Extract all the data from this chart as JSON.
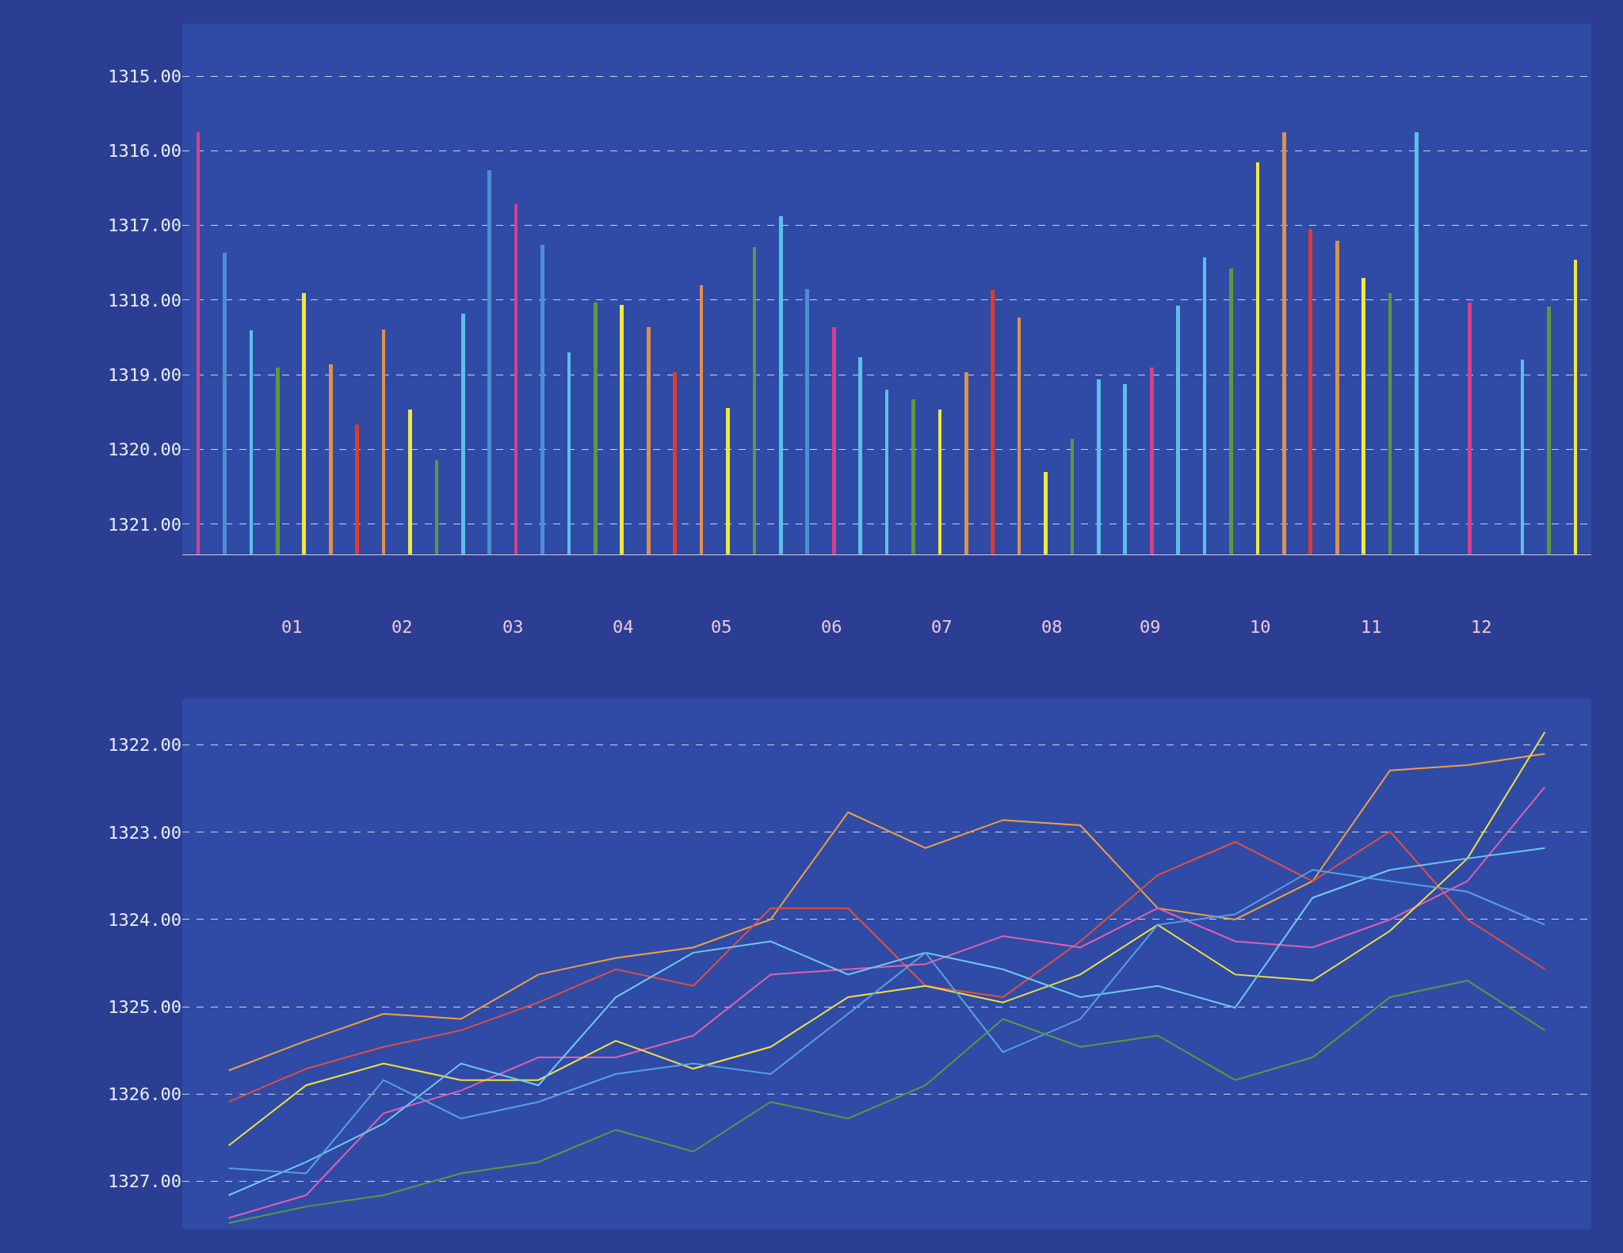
{
  "chart_data": [
    {
      "type": "bar",
      "categories": [
        null,
        null,
        null,
        null,
        null,
        null,
        null,
        null,
        null,
        null,
        null,
        null,
        null,
        null,
        null,
        null,
        null,
        null,
        null,
        null,
        null,
        null,
        null,
        null,
        null,
        null,
        null,
        null,
        null,
        null,
        null,
        null,
        null,
        null,
        null,
        null,
        null,
        null,
        null,
        null,
        null,
        null,
        null,
        null,
        null,
        null,
        null,
        null,
        null,
        null,
        null,
        null,
        null
      ],
      "values": [
        -5.65,
        -4.04,
        -3.0,
        -2.5,
        -3.5,
        -2.54,
        -1.74,
        -3.01,
        -1.94,
        -1.26,
        -3.22,
        -5.14,
        -4.68,
        -4.14,
        -2.7,
        -3.37,
        -3.34,
        -3.04,
        -2.43,
        -3.6,
        -1.96,
        -4.11,
        -4.52,
        -3.55,
        -3.04,
        -2.64,
        -2.2,
        -2.07,
        -1.94,
        -2.43,
        -3.54,
        -3.17,
        -1.1,
        -1.54,
        -2.34,
        -2.28,
        -2.5,
        -3.33,
        -3.97,
        -3.82,
        -5.24,
        -5.65,
        -4.35,
        -4.2,
        -3.7,
        -3.5,
        -5.65,
        null,
        -3.37,
        null,
        -2.6,
        -3.32,
        -3.94
      ],
      "base": [
        1321.4,
        1321.4,
        1321.4,
        1321.4,
        1321.4,
        1321.4,
        1321.4,
        1321.4,
        1321.4,
        1321.4,
        1321.4,
        1321.4,
        1321.4,
        1321.4,
        1321.4,
        1321.4,
        1321.4,
        1321.4,
        1321.4,
        1321.4,
        1321.4,
        1321.4,
        1321.4,
        1321.4,
        1321.4,
        1321.4,
        1321.4,
        1321.4,
        1321.4,
        1321.4,
        1321.4,
        1321.4,
        1321.4,
        1321.4,
        1321.4,
        1321.4,
        1321.4,
        1321.4,
        1321.4,
        1321.4,
        1321.4,
        1321.4,
        1321.4,
        1321.4,
        1321.4,
        1321.4,
        1321.4,
        null,
        1321.4,
        null,
        1321.4,
        1321.4,
        1321.4
      ],
      "colors": [
        "#d6408c",
        "#4a90d0",
        "#5cc0e8",
        "#5a9a3c",
        "#f2e83a",
        "#e09048",
        "#e03a2a",
        "#e09048",
        "#f2e83a",
        "#5a9a3c",
        "#5cc0e8",
        "#4a90d0",
        "#d6408c",
        "#4a90d0",
        "#5cc0e8",
        "#5a9a3c",
        "#f2e83a",
        "#e09048",
        "#e03a2a",
        "#e09048",
        "#f2e83a",
        "#5a9a3c",
        "#5cc0e8",
        "#4a90d0",
        "#d6408c",
        "#5cc0e8",
        "#5cc0e8",
        "#5a9a3c",
        "#f2e83a",
        "#e09048",
        "#e03a2a",
        "#e09048",
        "#f2e83a",
        "#5a9a3c",
        "#5cc0e8",
        "#5cc0e8",
        "#d6408c",
        "#5cc0e8",
        "#5cc0e8",
        "#5a9a3c",
        "#f2e83a",
        "#e09048",
        "#e03a2a",
        "#e09048",
        "#f2e83a",
        "#5a9a3c",
        "#5cc0e8",
        "#5cc0e8",
        "#d6408c",
        "#5cc0e8",
        "#5cc0e8",
        "#5a9a3c",
        "#f2e83a"
      ],
      "ylim": [
        1321.4,
        1314.3
      ],
      "yticks": [
        {
          "value": 1315,
          "label": "1315.00"
        },
        {
          "value": 1316,
          "label": "1316.00"
        },
        {
          "value": 1317,
          "label": "1317.00"
        },
        {
          "value": 1318,
          "label": "1318.00"
        },
        {
          "value": 1319,
          "label": "1319.00"
        },
        {
          "value": 1320,
          "label": "1320.00"
        },
        {
          "value": 1321,
          "label": "1321.00"
        }
      ],
      "grid": "y",
      "annotations": [
        "01",
        "02",
        "03",
        "04",
        "05",
        "06",
        "07",
        "08",
        "09",
        "10",
        "11",
        "12"
      ]
    },
    {
      "type": "line",
      "categories": [
        null,
        null,
        null,
        null,
        null,
        null,
        null,
        null,
        null,
        null,
        null,
        null,
        null,
        null,
        null,
        null,
        null,
        null
      ],
      "series": [
        {
          "color": "#f0a040",
          "values": [
            1325.73,
            1325.39,
            1325.08,
            1325.14,
            1324.63,
            1324.44,
            1324.32,
            1324.0,
            1322.77,
            1323.18,
            1322.86,
            1322.92,
            1323.87,
            1324.0,
            1323.56,
            1322.29,
            1322.23,
            1322.1
          ]
        },
        {
          "color": "#e05040",
          "values": [
            1326.09,
            1325.71,
            1325.46,
            1325.27,
            1324.95,
            1324.57,
            1324.76,
            1323.87,
            1323.87,
            1324.76,
            1324.89,
            1324.25,
            1323.49,
            1323.11,
            1323.56,
            1322.99,
            1324.0,
            1324.57
          ]
        },
        {
          "color": "#e060b0",
          "values": [
            1327.42,
            1327.16,
            1326.22,
            1325.96,
            1325.58,
            1325.58,
            1325.33,
            1324.63,
            1324.57,
            1324.51,
            1324.19,
            1324.32,
            1323.87,
            1324.25,
            1324.32,
            1324.0,
            1323.56,
            1322.48
          ]
        },
        {
          "color": "#f0e040",
          "values": [
            1326.59,
            1325.9,
            1325.65,
            1325.84,
            1325.84,
            1325.39,
            1325.71,
            1325.46,
            1324.89,
            1324.76,
            1324.95,
            1324.63,
            1324.06,
            1324.63,
            1324.7,
            1324.13,
            1323.3,
            1321.85
          ]
        },
        {
          "color": "#70c8f0",
          "values": [
            1327.16,
            1326.78,
            1326.34,
            1325.65,
            1325.9,
            1324.89,
            1324.38,
            1324.25,
            1324.63,
            1324.38,
            1324.57,
            1324.89,
            1324.76,
            1325.01,
            1323.75,
            1323.43,
            1323.3,
            1323.18
          ]
        },
        {
          "color": "#5aa0e0",
          "values": [
            1326.85,
            1326.91,
            1325.84,
            1326.28,
            1326.09,
            1325.77,
            1325.65,
            1325.77,
            1325.08,
            1324.38,
            1325.52,
            1325.14,
            1324.06,
            1323.94,
            1323.43,
            1323.56,
            1323.68,
            1324.06
          ]
        },
        {
          "color": "#5a9a40",
          "values": [
            1327.48,
            1327.29,
            1327.16,
            1326.91,
            1326.78,
            1326.41,
            1326.66,
            1326.09,
            1326.28,
            1325.9,
            1325.14,
            1325.46,
            1325.33,
            1325.84,
            1325.58,
            1324.89,
            1324.7,
            1325.27
          ]
        }
      ],
      "ylim": [
        1327.55,
        1321.47
      ],
      "yticks": [
        {
          "value": 1322,
          "label": "1322.00"
        },
        {
          "value": 1323,
          "label": "1323.00"
        },
        {
          "value": 1324,
          "label": "1324.00"
        },
        {
          "value": 1325,
          "label": "1325.00"
        },
        {
          "value": 1326,
          "label": "1326.00"
        },
        {
          "value": 1327,
          "label": "1327.00"
        }
      ],
      "grid": "y",
      "marker": "none",
      "line_style": "solid"
    }
  ]
}
